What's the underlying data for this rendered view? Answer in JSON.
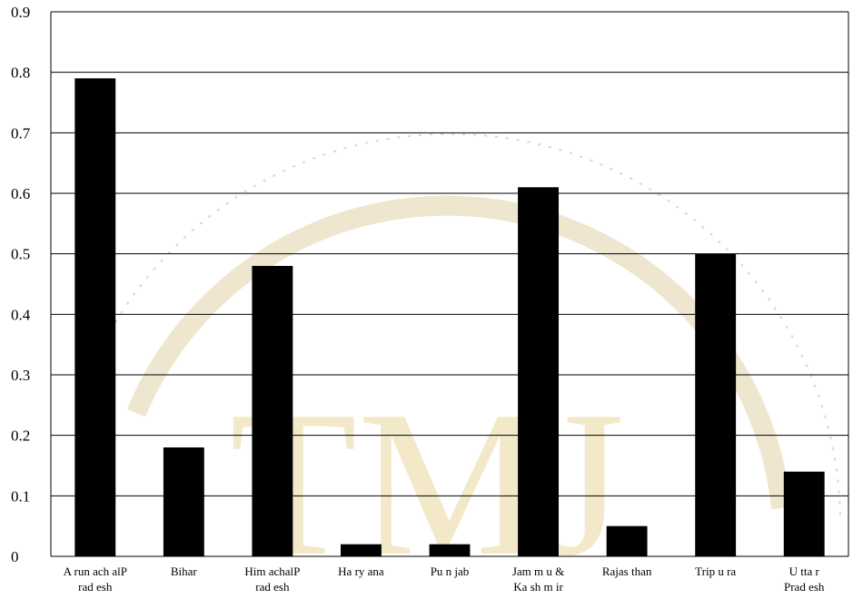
{
  "chart_data": {
    "type": "bar",
    "title": "",
    "xlabel": "",
    "ylabel": "",
    "ylim": [
      0,
      0.9
    ],
    "yticks": [
      0,
      0.1,
      0.2,
      0.3,
      0.4,
      0.5,
      0.6,
      0.7,
      0.8,
      0.9
    ],
    "ytick_labels": [
      "0",
      "0.1",
      "0.2",
      "0.3",
      "0.4",
      "0.5",
      "0.6",
      "0.7",
      "0.8",
      "0.9"
    ],
    "grid": true,
    "categories": [
      [
        "A run ach alP",
        "rad esh"
      ],
      [
        "Bihar"
      ],
      [
        "Him achalP",
        "rad esh"
      ],
      [
        "Ha ry ana"
      ],
      [
        "Pu n jab"
      ],
      [
        "Jam m u &",
        "Ka sh m ir"
      ],
      [
        "Rajas than"
      ],
      [
        "Trip u ra"
      ],
      [
        "U tta r",
        "Prad esh"
      ]
    ],
    "values": [
      0.79,
      0.18,
      0.48,
      0.02,
      0.02,
      0.61,
      0.05,
      0.5,
      0.14
    ],
    "bar_color": "#000000"
  },
  "watermark": {
    "text": "TMJ",
    "color": "#f3e9c9"
  }
}
